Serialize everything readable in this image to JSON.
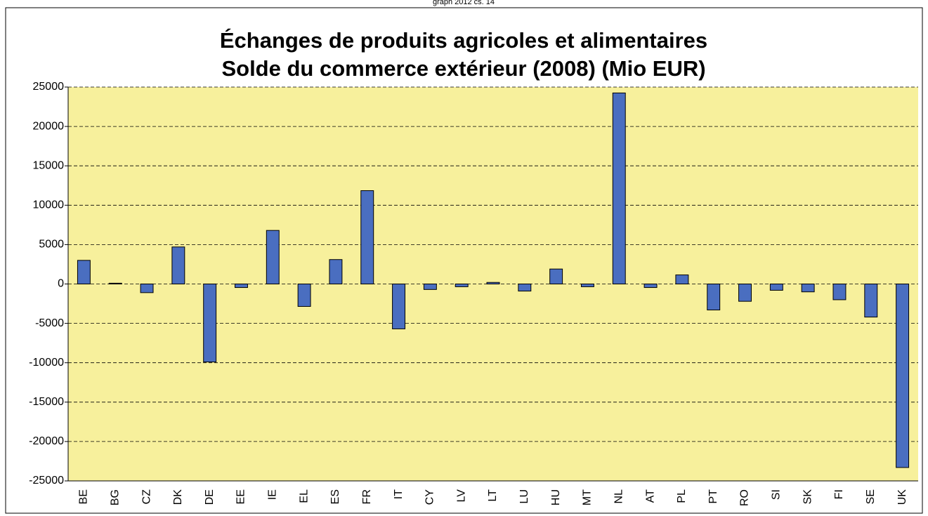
{
  "chart_data": {
    "type": "bar",
    "header_note": "graph 2012 cs. 14",
    "title": "Échanges de produits agricoles et alimentaires",
    "subtitle": "Solde du commerce extérieur (2008) (Mio EUR)",
    "categories": [
      "BE",
      "BG",
      "CZ",
      "DK",
      "DE",
      "EE",
      "IE",
      "EL",
      "ES",
      "FR",
      "IT",
      "CY",
      "LV",
      "LT",
      "LU",
      "HU",
      "MT",
      "NL",
      "AT",
      "PL",
      "PT",
      "RO",
      "SI",
      "SK",
      "FI",
      "SE",
      "UK"
    ],
    "values": [
      3000,
      100,
      -1100,
      4700,
      -9900,
      -450,
      6800,
      -2850,
      3100,
      11850,
      -5700,
      -700,
      -350,
      200,
      -900,
      1900,
      -350,
      24250,
      -450,
      1150,
      -3300,
      -2200,
      -800,
      -1000,
      -2000,
      -4200,
      -23300
    ],
    "color": "#4a6ec0",
    "plot_background": "#f7f09c",
    "ylim": [
      -25000,
      25000
    ],
    "yticks": [
      -25000,
      -20000,
      -15000,
      -10000,
      -5000,
      0,
      5000,
      10000,
      15000,
      20000,
      25000
    ],
    "grid": true
  }
}
